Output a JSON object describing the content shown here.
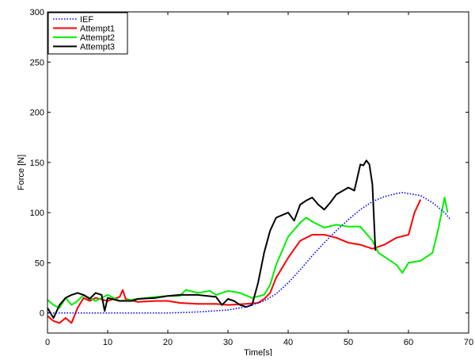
{
  "chart_data": {
    "type": "line",
    "title": "",
    "xlabel": "Time[s]",
    "ylabel": "Force [N]",
    "xlim": [
      0,
      70
    ],
    "ylim": [
      -20,
      300
    ],
    "xticks": [
      "0",
      "10",
      "20",
      "30",
      "40",
      "50",
      "60",
      "70"
    ],
    "yticks": [
      "0",
      "50",
      "100",
      "150",
      "200",
      "250",
      "300"
    ],
    "grid": false,
    "legend_position": "top-left",
    "series": [
      {
        "name": "IEF",
        "color": "#0000ff",
        "style": "dotted",
        "x": [
          0,
          10,
          20,
          25,
          30,
          33,
          36,
          38,
          40,
          42,
          44,
          46,
          48,
          50,
          52,
          54,
          56,
          58,
          59,
          60,
          62,
          64,
          66,
          67
        ],
        "y": [
          0,
          0,
          0,
          1,
          3,
          6,
          12,
          19,
          30,
          43,
          57,
          70,
          82,
          93,
          103,
          111,
          116,
          119,
          120,
          119,
          117,
          110,
          100,
          93
        ]
      },
      {
        "name": "Attempt1",
        "color": "#ff0000",
        "style": "solid",
        "x": [
          0,
          1,
          2,
          3,
          4,
          5,
          6,
          7,
          8,
          10,
          12,
          12.5,
          13,
          15,
          18,
          20,
          22,
          25,
          28,
          30,
          33,
          35,
          36,
          37,
          38,
          40,
          42,
          44,
          46,
          48,
          50,
          52,
          54,
          56,
          58,
          60,
          61,
          62
        ],
        "y": [
          -3,
          -8,
          -10,
          -5,
          -10,
          5,
          15,
          12,
          15,
          12,
          16,
          23,
          14,
          11,
          12,
          12,
          10,
          9,
          9,
          8,
          9,
          10,
          14,
          20,
          35,
          55,
          72,
          78,
          78,
          75,
          70,
          68,
          64,
          68,
          75,
          78,
          100,
          113
        ]
      },
      {
        "name": "Attempt2",
        "color": "#00ee00",
        "style": "solid",
        "x": [
          0,
          1,
          2,
          3,
          4,
          5,
          6,
          7,
          8,
          10,
          12,
          15,
          18,
          20,
          22,
          23,
          25,
          27,
          28,
          30,
          32,
          34,
          36,
          37,
          38,
          40,
          42,
          43,
          44,
          46,
          48,
          50,
          52,
          54,
          55,
          56,
          58,
          59,
          60,
          62,
          64,
          65,
          66,
          66.5
        ],
        "y": [
          13,
          8,
          5,
          15,
          8,
          12,
          18,
          15,
          12,
          18,
          12,
          14,
          16,
          17,
          17,
          23,
          20,
          22,
          18,
          22,
          20,
          15,
          18,
          28,
          48,
          76,
          90,
          95,
          91,
          85,
          88,
          86,
          86,
          72,
          60,
          56,
          48,
          40,
          50,
          52,
          60,
          85,
          115,
          100
        ]
      },
      {
        "name": "Attempt3",
        "color": "#000000",
        "style": "solid",
        "x": [
          0,
          1,
          2,
          3,
          4,
          5,
          6,
          7,
          8,
          9,
          9.5,
          10,
          12,
          14,
          15,
          18,
          20,
          22,
          25,
          28,
          29,
          30,
          31,
          32,
          33,
          34,
          35,
          36,
          37,
          38,
          40,
          41,
          42,
          43,
          44,
          45,
          46,
          47,
          48,
          50,
          51,
          52,
          52.5,
          53,
          53.5,
          54,
          54.5
        ],
        "y": [
          5,
          -5,
          8,
          15,
          18,
          20,
          18,
          14,
          20,
          18,
          2,
          15,
          12,
          12,
          14,
          15,
          17,
          18,
          18,
          16,
          8,
          14,
          12,
          8,
          6,
          8,
          30,
          60,
          82,
          95,
          100,
          92,
          108,
          112,
          115,
          108,
          103,
          110,
          118,
          125,
          122,
          148,
          147,
          152,
          148,
          128,
          62
        ]
      }
    ]
  }
}
